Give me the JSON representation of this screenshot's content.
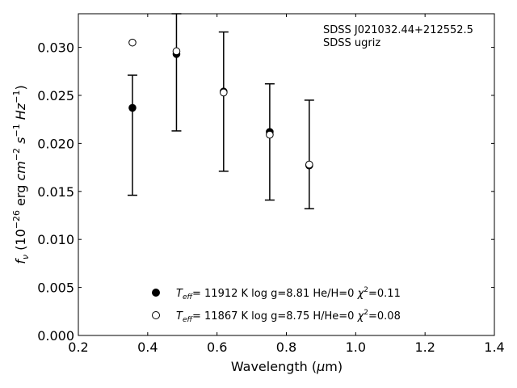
{
  "chart_data": {
    "type": "scatter",
    "title": "",
    "xlabel": "Wavelength (μm)",
    "ylabel": "f_ν (10^-26 erg cm^-2 s^-1 Hz^-1)",
    "xlim": [
      0.2,
      1.4
    ],
    "ylim": [
      0.0,
      0.0335
    ],
    "x_ticks": [
      0.2,
      0.4,
      0.6,
      0.8,
      1.0,
      1.2,
      1.4
    ],
    "x_tick_labels": [
      "0.2",
      "0.4",
      "0.6",
      "0.8",
      "1.0",
      "1.2",
      "1.4"
    ],
    "y_ticks": [
      0.0,
      0.005,
      0.01,
      0.015,
      0.02,
      0.025,
      0.03
    ],
    "y_tick_labels": [
      "0.000",
      "0.005",
      "0.010",
      "0.015",
      "0.020",
      "0.025",
      "0.030"
    ],
    "grid": false,
    "annotation": [
      "SDSS J021032.44+212552.5",
      "SDSS ugriz"
    ],
    "observed": {
      "x": [
        0.356,
        0.483,
        0.619,
        0.752,
        0.866
      ],
      "y": [
        0.0208,
        0.0277,
        0.0243,
        0.0201,
        0.0188
      ],
      "yerr_low": [
        0.0146,
        0.0213,
        0.0171,
        0.0141,
        0.0132
      ],
      "yerr_high": [
        0.0271,
        0.0335,
        0.0316,
        0.0262,
        0.0245
      ]
    },
    "series": [
      {
        "name": "T_eff= 11912 K  log g=8.81  He/H=0  χ²=0.11",
        "marker": "filled-circle",
        "x": [
          0.356,
          0.483,
          0.619,
          0.752,
          0.866
        ],
        "y": [
          0.0237,
          0.0293,
          0.0254,
          0.0212,
          0.0177
        ]
      },
      {
        "name": "T_eff= 11867 K  log g=8.75  H/He=0  χ²=0.08",
        "marker": "open-circle",
        "x": [
          0.356,
          0.483,
          0.619,
          0.752,
          0.866
        ],
        "y": [
          0.0305,
          0.0296,
          0.0253,
          0.0209,
          0.0178
        ]
      }
    ],
    "legend_placement": "bottom-center"
  }
}
